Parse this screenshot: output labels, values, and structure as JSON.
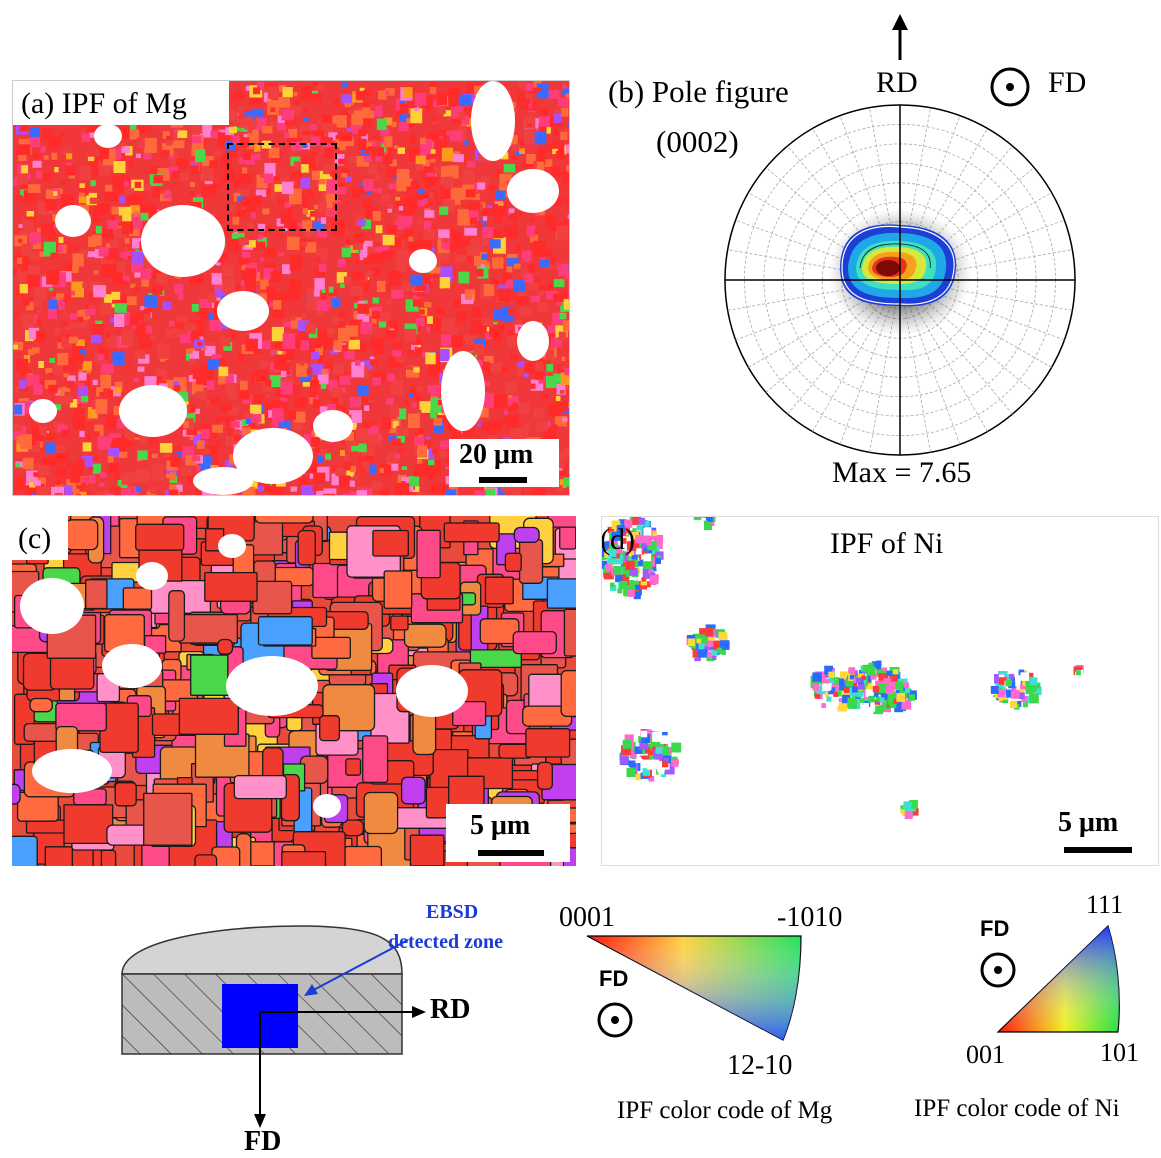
{
  "panel_a": {
    "label": "(a) IPF of Mg",
    "scalebar": "20 μm"
  },
  "panel_b": {
    "label_line1": "(b) Pole figure",
    "label_line2": "(0002)",
    "rd_label": "RD",
    "fd_label": "FD",
    "max_label": "Max = 7.65"
  },
  "panel_c": {
    "label": "(c)",
    "scalebar": "5 μm"
  },
  "panel_d": {
    "label": "(d)",
    "title": "IPF of Ni",
    "scalebar": "5 μm"
  },
  "schematic": {
    "zone_label_line1": "EBSD",
    "zone_label_line2": "detected zone",
    "rd_label": "RD",
    "fd_label": "FD",
    "zone_color": "#0000ff"
  },
  "mg_key": {
    "corner_top_left": "0001",
    "corner_top_right": "-1010",
    "corner_bottom": "12-10",
    "fd_label": "FD",
    "caption": "IPF color code of Mg"
  },
  "ni_key": {
    "corner_top": "111",
    "corner_left": "001",
    "corner_right": "101",
    "fd_label": "FD",
    "caption": "IPF color code of Ni"
  }
}
